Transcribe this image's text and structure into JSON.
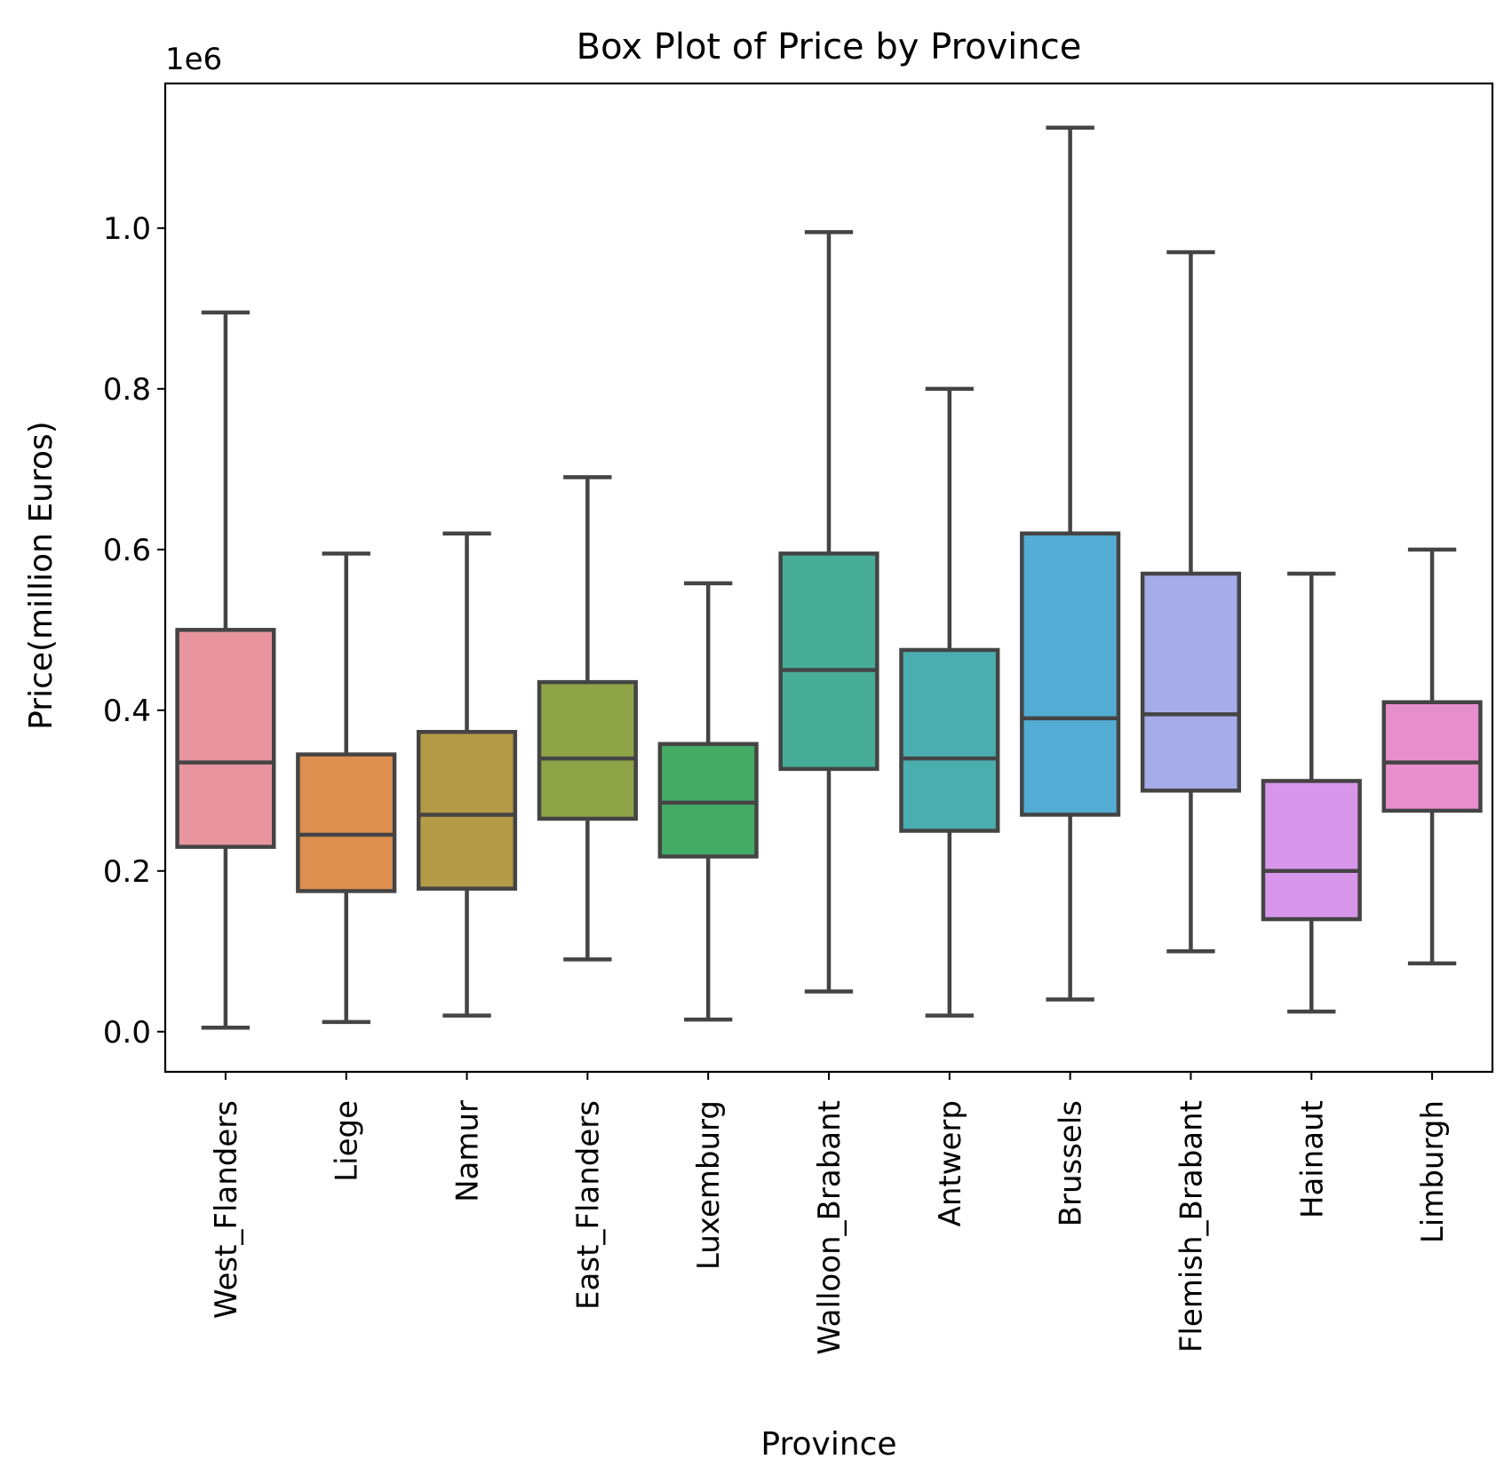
{
  "chart_data": {
    "type": "box",
    "title": "Box Plot of Price by Province",
    "xlabel": "Province",
    "ylabel": "Price(million Euros)",
    "y_offset_label": "1e6",
    "ylim": [
      -0.05,
      1.18
    ],
    "yticks": [
      0.0,
      0.2,
      0.4,
      0.6,
      0.8,
      1.0
    ],
    "ytick_labels": [
      "0.0",
      "0.2",
      "0.4",
      "0.6",
      "0.8",
      "1.0"
    ],
    "grid": false,
    "legend": "none",
    "box_edge_color": "#444444",
    "categories": [
      "West_Flanders",
      "Liege",
      "Namur",
      "East_Flanders",
      "Luxemburg",
      "Walloon_Brabant",
      "Antwerp",
      "Brussels",
      "Flemish_Brabant",
      "Hainaut",
      "Limburgh"
    ],
    "colors": [
      "#e8959f",
      "#dc8f4f",
      "#b59a48",
      "#8ea447",
      "#44ab64",
      "#47ad96",
      "#4aaeb0",
      "#53acd4",
      "#a6abe9",
      "#d896ea",
      "#e78ecc"
    ],
    "boxes": [
      {
        "min": 0.005,
        "q1": 0.23,
        "median": 0.335,
        "q3": 0.5,
        "max": 0.895
      },
      {
        "min": 0.012,
        "q1": 0.175,
        "median": 0.245,
        "q3": 0.345,
        "max": 0.595
      },
      {
        "min": 0.02,
        "q1": 0.178,
        "median": 0.27,
        "q3": 0.373,
        "max": 0.62
      },
      {
        "min": 0.09,
        "q1": 0.265,
        "median": 0.34,
        "q3": 0.435,
        "max": 0.69
      },
      {
        "min": 0.015,
        "q1": 0.218,
        "median": 0.285,
        "q3": 0.358,
        "max": 0.558
      },
      {
        "min": 0.05,
        "q1": 0.327,
        "median": 0.45,
        "q3": 0.595,
        "max": 0.995
      },
      {
        "min": 0.02,
        "q1": 0.25,
        "median": 0.34,
        "q3": 0.475,
        "max": 0.8
      },
      {
        "min": 0.04,
        "q1": 0.27,
        "median": 0.39,
        "q3": 0.62,
        "max": 1.125
      },
      {
        "min": 0.1,
        "q1": 0.3,
        "median": 0.395,
        "q3": 0.57,
        "max": 0.97
      },
      {
        "min": 0.025,
        "q1": 0.14,
        "median": 0.2,
        "q3": 0.312,
        "max": 0.57
      },
      {
        "min": 0.085,
        "q1": 0.275,
        "median": 0.335,
        "q3": 0.41,
        "max": 0.6
      }
    ]
  }
}
